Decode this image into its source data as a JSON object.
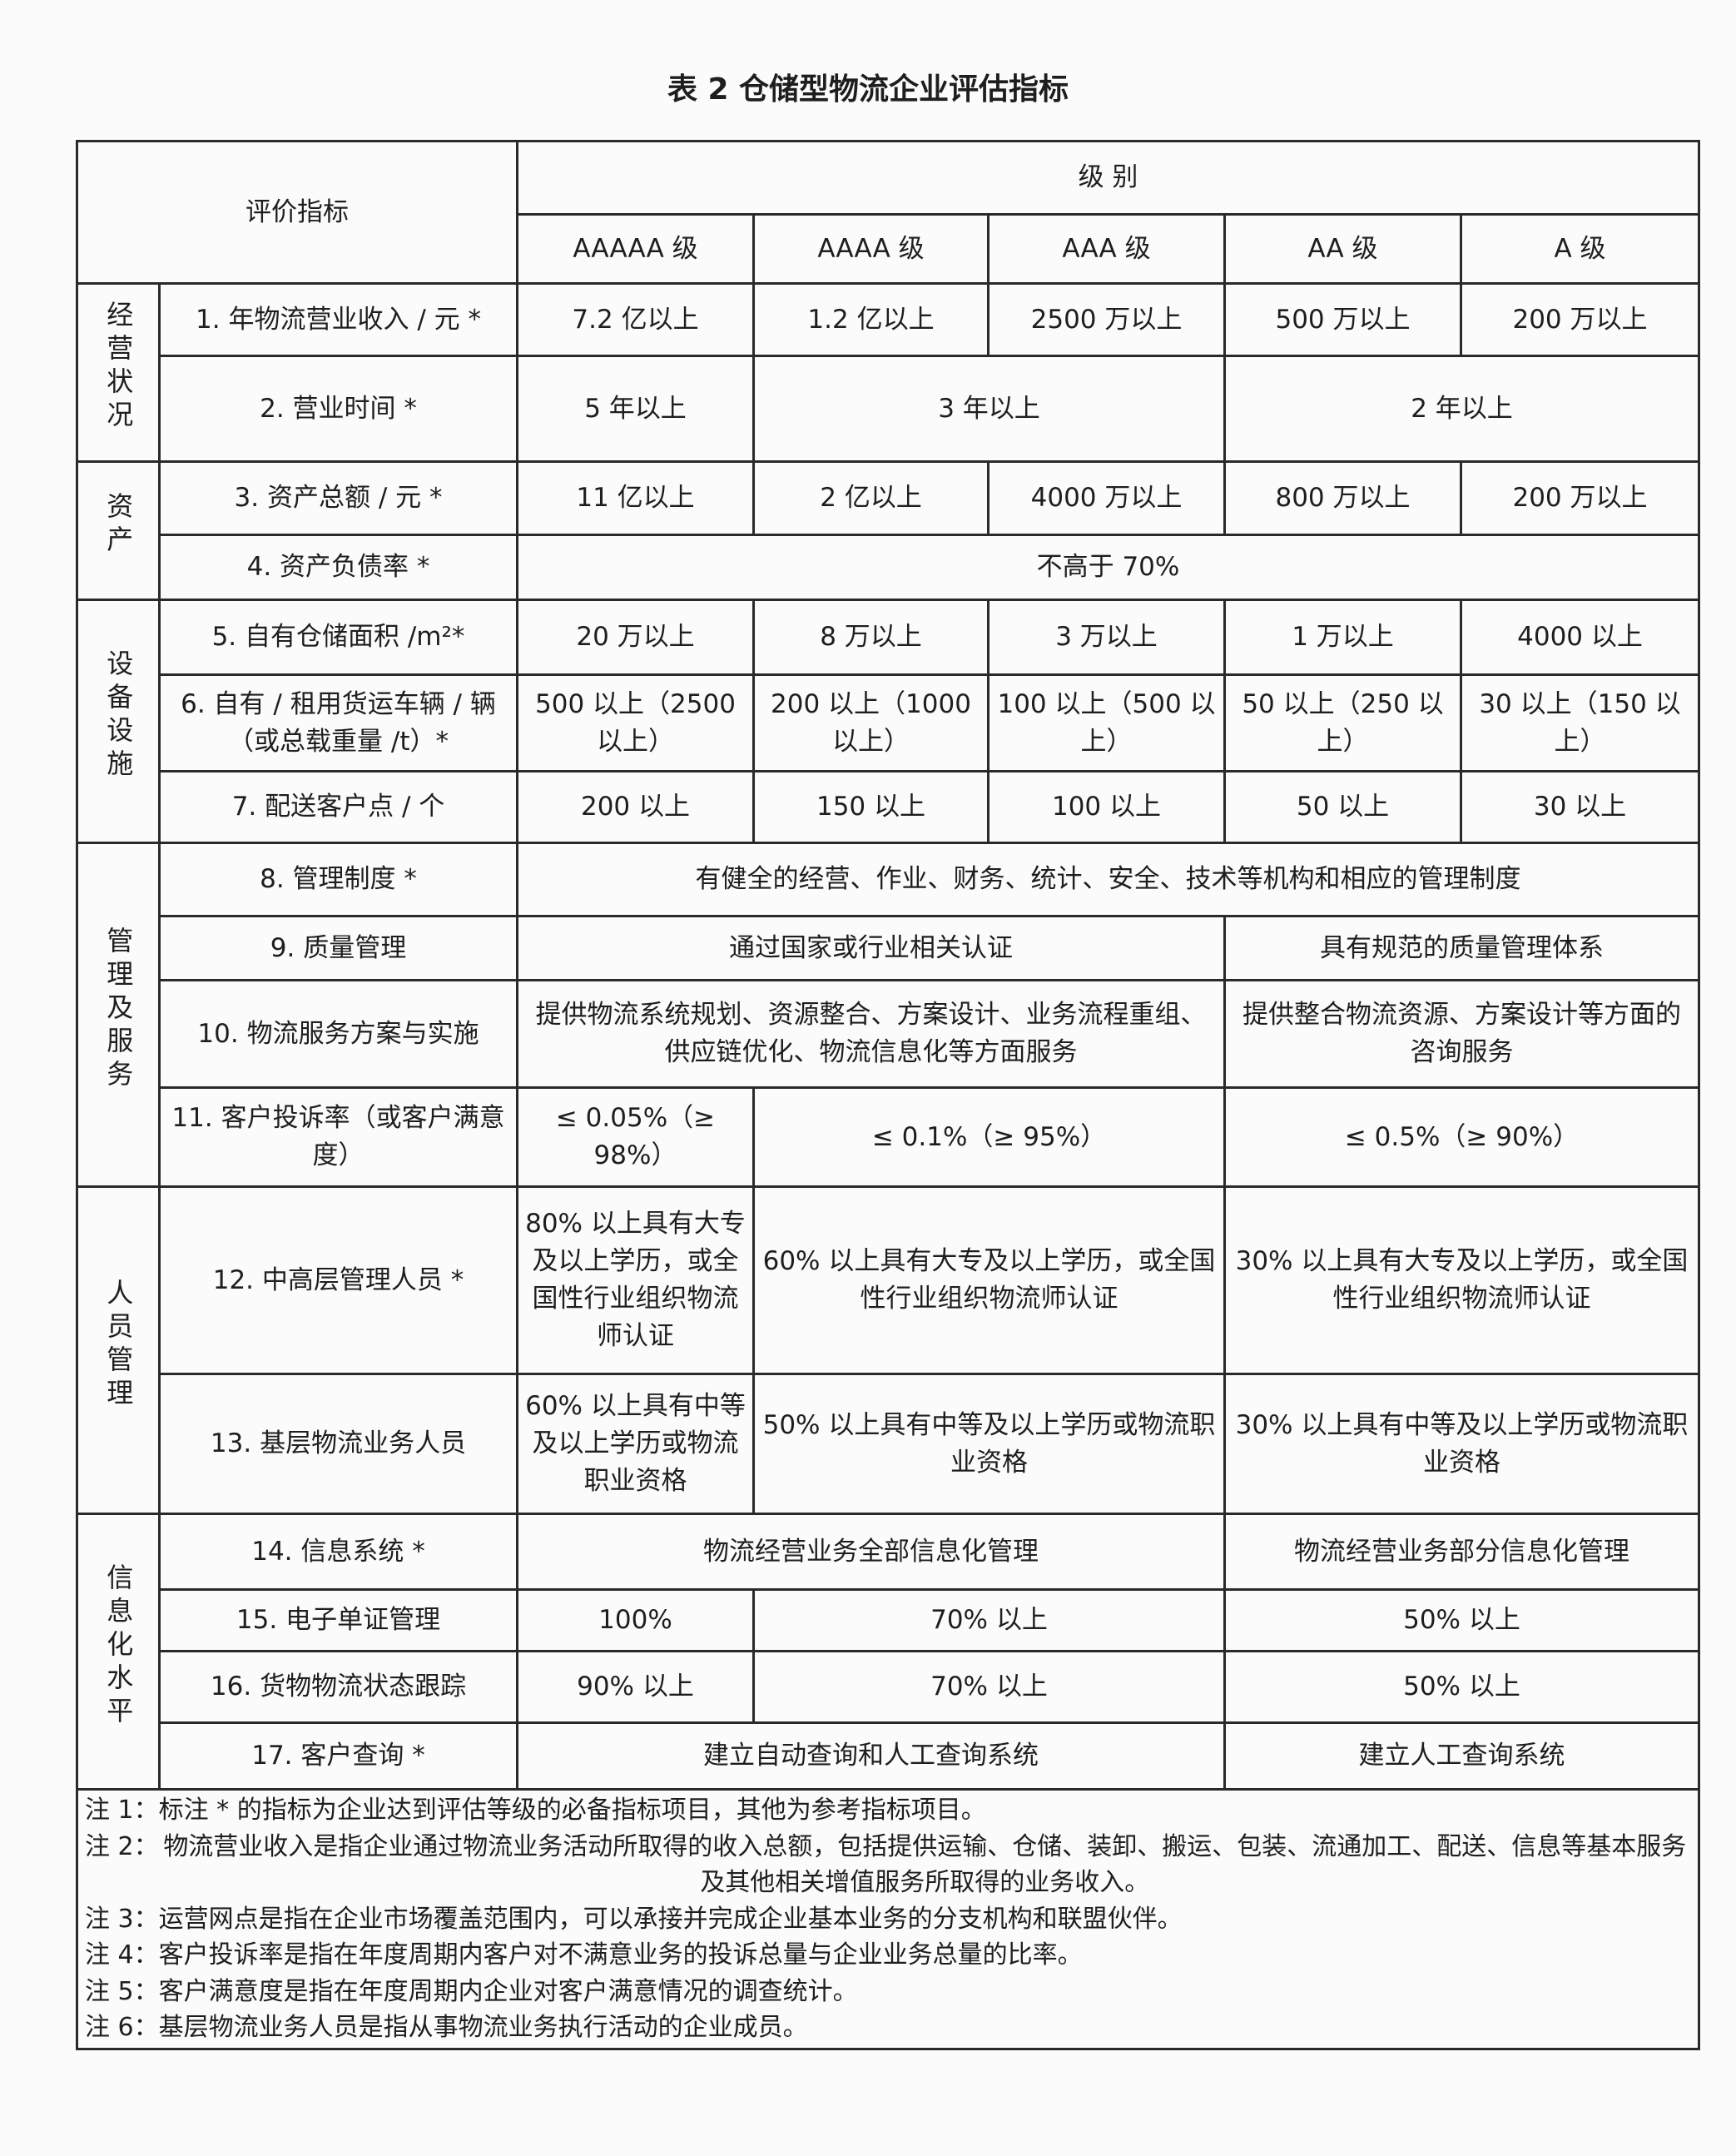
{
  "title": "表 2  仓储型物流企业评估指标",
  "header": {
    "indicator": "评价指标",
    "level": "级 别",
    "levels": [
      "AAAAA 级",
      "AAAA 级",
      "AAA 级",
      "AA 级",
      "A 级"
    ]
  },
  "groups": [
    "经营状况",
    "资产",
    "设备设施",
    "管理及服务",
    "人员管理",
    "信息化水平"
  ],
  "rows": [
    {
      "label": "1. 年物流营业收入 / 元 *",
      "values": [
        "7.2 亿以上",
        "1.2 亿以上",
        "2500 万以上",
        "500 万以上",
        "200 万以上"
      ]
    },
    {
      "label": "2. 营业时间 *",
      "values": [
        "5 年以上",
        "3 年以上",
        "2 年以上"
      ]
    },
    {
      "label": "3. 资产总额 / 元 *",
      "values": [
        "11 亿以上",
        "2 亿以上",
        "4000 万以上",
        "800 万以上",
        "200 万以上"
      ]
    },
    {
      "label": "4. 资产负债率 *",
      "values": [
        "不高于 70%"
      ]
    },
    {
      "label": "5. 自有仓储面积 /m²*",
      "values": [
        "20 万以上",
        "8 万以上",
        "3 万以上",
        "1 万以上",
        "4000 以上"
      ]
    },
    {
      "label": "6. 自有 / 租用货运车辆 / 辆（或总载重量 /t）*",
      "values": [
        "500 以上（2500 以上）",
        "200 以上（1000 以上）",
        "100 以上（500 以上）",
        "50 以上（250 以上）",
        "30 以上（150 以上）"
      ]
    },
    {
      "label": "7. 配送客户点 / 个",
      "values": [
        "200 以上",
        "150 以上",
        "100 以上",
        "50 以上",
        "30 以上"
      ]
    },
    {
      "label": "8. 管理制度 *",
      "values": [
        "有健全的经营、作业、财务、统计、安全、技术等机构和相应的管理制度"
      ]
    },
    {
      "label": "9. 质量管理",
      "values": [
        "通过国家或行业相关认证",
        "具有规范的质量管理体系"
      ]
    },
    {
      "label": "10. 物流服务方案与实施",
      "values": [
        "提供物流系统规划、资源整合、方案设计、业务流程重组、供应链优化、物流信息化等方面服务",
        "提供整合物流资源、方案设计等方面的咨询服务"
      ]
    },
    {
      "label": "11. 客户投诉率（或客户满意度）",
      "values": [
        "≤ 0.05%（≥ 98%）",
        "≤ 0.1%（≥ 95%）",
        "≤ 0.5%（≥ 90%）"
      ]
    },
    {
      "label": "12. 中高层管理人员 *",
      "values": [
        "80% 以上具有大专及以上学历，或全国性行业组织物流师认证",
        "60% 以上具有大专及以上学历，或全国性行业组织物流师认证",
        "30% 以上具有大专及以上学历，或全国性行业组织物流师认证"
      ]
    },
    {
      "label": "13. 基层物流业务人员",
      "values": [
        "60% 以上具有中等及以上学历或物流职业资格",
        "50% 以上具有中等及以上学历或物流职业资格",
        "30% 以上具有中等及以上学历或物流职业资格"
      ]
    },
    {
      "label": "14. 信息系统 *",
      "values": [
        "物流经营业务全部信息化管理",
        "物流经营业务部分信息化管理"
      ]
    },
    {
      "label": "15. 电子单证管理",
      "values": [
        "100%",
        "70% 以上",
        "50% 以上"
      ]
    },
    {
      "label": "16. 货物物流状态跟踪",
      "values": [
        "90% 以上",
        "70% 以上",
        "50% 以上"
      ]
    },
    {
      "label": "17. 客户查询 *",
      "values": [
        "建立自动查询和人工查询系统",
        "建立人工查询系统"
      ]
    }
  ],
  "notes": [
    {
      "key": "注 1：",
      "text": "标注 * 的指标为企业达到评估等级的必备指标项目，其他为参考指标项目。"
    },
    {
      "key": "注 2：",
      "text": "物流营业收入是指企业通过物流业务活动所取得的收入总额，包括提供运输、仓储、装卸、搬运、包装、流通加工、配送、信息等基本服务及其他相关增值服务所取得的业务收入。"
    },
    {
      "key": "注 3：",
      "text": "运营网点是指在企业市场覆盖范围内，可以承接并完成企业基本业务的分支机构和联盟伙伴。"
    },
    {
      "key": "注 4：",
      "text": "客户投诉率是指在年度周期内客户对不满意业务的投诉总量与企业业务总量的比率。"
    },
    {
      "key": "注 5：",
      "text": "客户满意度是指在年度周期内企业对客户满意情况的调查统计。"
    },
    {
      "key": "注 6：",
      "text": "基层物流业务人员是指从事物流业务执行活动的企业成员。"
    }
  ]
}
